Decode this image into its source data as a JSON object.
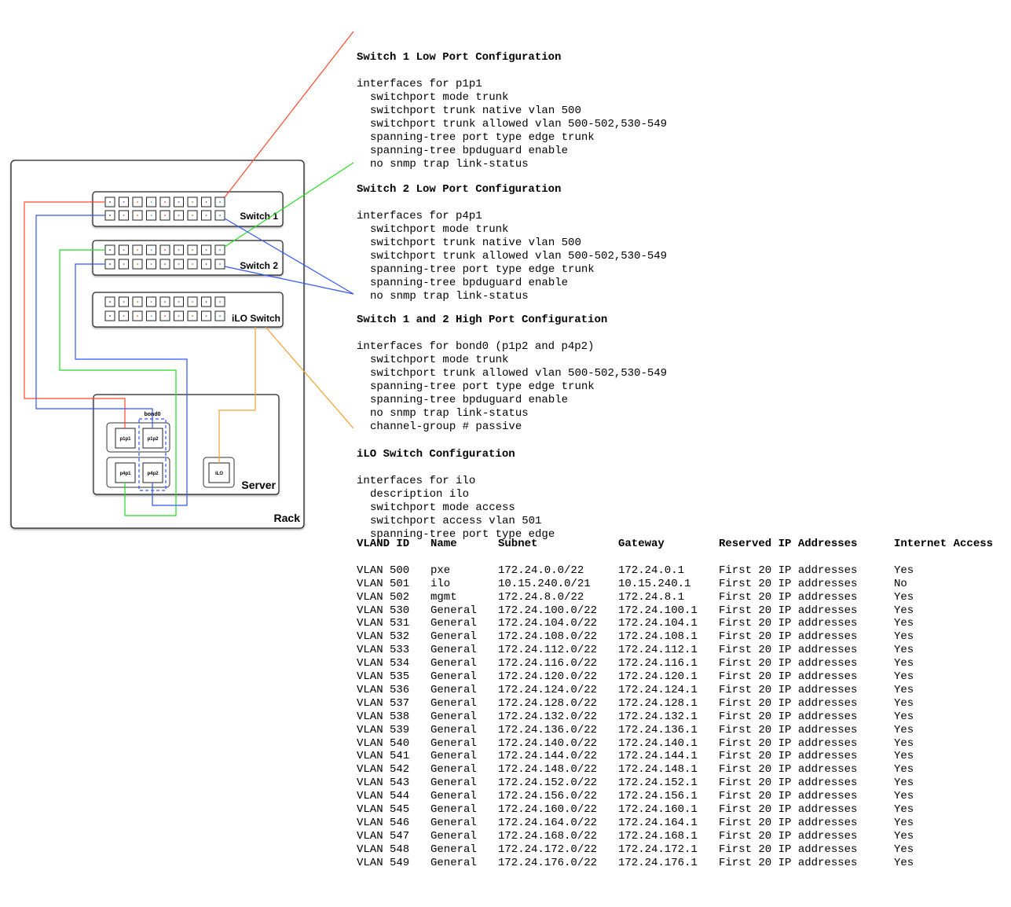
{
  "diagram": {
    "rack_label": "Rack",
    "switch1_label": "Switch 1",
    "switch2_label": "Switch 2",
    "ilo_switch_label": "iLO Switch",
    "server_label": "Server",
    "bond_label": "bond0",
    "ports": {
      "p1p1": "p1p1",
      "p1p2": "p1p2",
      "p4p1": "p4p1",
      "p4p2": "p4p2",
      "ilo": "iLO"
    },
    "colors": {
      "switch1_low": "#ff4a2e",
      "high": "#3355ff",
      "switch2_low": "#22dd22",
      "ilo": "#f5a033"
    }
  },
  "configs": [
    {
      "title": "Switch 1 Low Port Configuration",
      "header": "interfaces for p1p1",
      "lines": [
        "switchport mode trunk",
        "switchport trunk native vlan 500",
        "switchport trunk allowed vlan 500-502,530-549",
        "spanning-tree port type edge trunk",
        "spanning-tree bpduguard enable",
        "no snmp trap link-status"
      ]
    },
    {
      "title": "Switch 2 Low Port Configuration",
      "header": "interfaces for p4p1",
      "lines": [
        "switchport mode trunk",
        "switchport trunk native vlan 500",
        "switchport trunk allowed vlan 500-502,530-549",
        "spanning-tree port type edge trunk",
        "spanning-tree bpduguard enable",
        "no snmp trap link-status"
      ]
    },
    {
      "title": "Switch 1 and 2 High Port Configuration",
      "header": "interfaces for bond0 (p1p2 and p4p2)",
      "lines": [
        "switchport mode trunk",
        "switchport trunk allowed vlan 500-502,530-549",
        "spanning-tree port type edge trunk",
        "spanning-tree bpduguard enable",
        "no snmp trap link-status",
        "channel-group # passive"
      ]
    },
    {
      "title": "iLO Switch Configuration",
      "header": "interfaces for ilo",
      "lines": [
        "description ilo",
        "switchport mode access",
        "switchport access vlan 501",
        "spanning-tree port type edge"
      ]
    }
  ],
  "vlan_table": {
    "headers": [
      "VLAND ID",
      "Name",
      "Subnet",
      "Gateway",
      "Reserved IP Addresses",
      "Internet Access"
    ],
    "rows": [
      [
        "VLAN 500",
        "pxe",
        "172.24.0.0/22",
        "172.24.0.1",
        "First 20 IP addresses",
        "Yes"
      ],
      [
        "VLAN 501",
        "ilo",
        "10.15.240.0/21",
        "10.15.240.1",
        "First 20 IP addresses",
        "No"
      ],
      [
        "VLAN 502",
        "mgmt",
        "172.24.8.0/22",
        "172.24.8.1",
        "First 20 IP addresses",
        "Yes"
      ],
      [
        "VLAN 530",
        "General",
        "172.24.100.0/22",
        "172.24.100.1",
        "First 20 IP addresses",
        "Yes"
      ],
      [
        "VLAN 531",
        "General",
        "172.24.104.0/22",
        "172.24.104.1",
        "First 20 IP addresses",
        "Yes"
      ],
      [
        "VLAN 532",
        "General",
        "172.24.108.0/22",
        "172.24.108.1",
        "First 20 IP addresses",
        "Yes"
      ],
      [
        "VLAN 533",
        "General",
        "172.24.112.0/22",
        "172.24.112.1",
        "First 20 IP addresses",
        "Yes"
      ],
      [
        "VLAN 534",
        "General",
        "172.24.116.0/22",
        "172.24.116.1",
        "First 20 IP addresses",
        "Yes"
      ],
      [
        "VLAN 535",
        "General",
        "172.24.120.0/22",
        "172.24.120.1",
        "First 20 IP addresses",
        "Yes"
      ],
      [
        "VLAN 536",
        "General",
        "172.24.124.0/22",
        "172.24.124.1",
        "First 20 IP addresses",
        "Yes"
      ],
      [
        "VLAN 537",
        "General",
        "172.24.128.0/22",
        "172.24.128.1",
        "First 20 IP addresses",
        "Yes"
      ],
      [
        "VLAN 538",
        "General",
        "172.24.132.0/22",
        "172.24.132.1",
        "First 20 IP addresses",
        "Yes"
      ],
      [
        "VLAN 539",
        "General",
        "172.24.136.0/22",
        "172.24.136.1",
        "First 20 IP addresses",
        "Yes"
      ],
      [
        "VLAN 540",
        "General",
        "172.24.140.0/22",
        "172.24.140.1",
        "First 20 IP addresses",
        "Yes"
      ],
      [
        "VLAN 541",
        "General",
        "172.24.144.0/22",
        "172.24.144.1",
        "First 20 IP addresses",
        "Yes"
      ],
      [
        "VLAN 542",
        "General",
        "172.24.148.0/22",
        "172.24.148.1",
        "First 20 IP addresses",
        "Yes"
      ],
      [
        "VLAN 543",
        "General",
        "172.24.152.0/22",
        "172.24.152.1",
        "First 20 IP addresses",
        "Yes"
      ],
      [
        "VLAN 544",
        "General",
        "172.24.156.0/22",
        "172.24.156.1",
        "First 20 IP addresses",
        "Yes"
      ],
      [
        "VLAN 545",
        "General",
        "172.24.160.0/22",
        "172.24.160.1",
        "First 20 IP addresses",
        "Yes"
      ],
      [
        "VLAN 546",
        "General",
        "172.24.164.0/22",
        "172.24.164.1",
        "First 20 IP addresses",
        "Yes"
      ],
      [
        "VLAN 547",
        "General",
        "172.24.168.0/22",
        "172.24.168.1",
        "First 20 IP addresses",
        "Yes"
      ],
      [
        "VLAN 548",
        "General",
        "172.24.172.0/22",
        "172.24.172.1",
        "First 20 IP addresses",
        "Yes"
      ],
      [
        "VLAN 549",
        "General",
        "172.24.176.0/22",
        "172.24.176.1",
        "First 20 IP addresses",
        "Yes"
      ]
    ]
  }
}
